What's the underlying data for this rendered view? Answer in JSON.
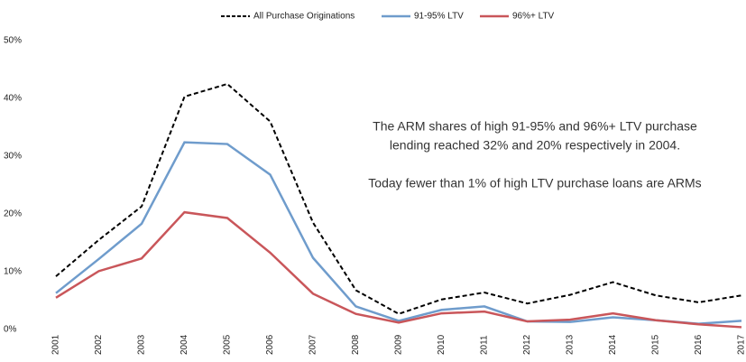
{
  "chart_data": {
    "type": "line",
    "categories": [
      "2001",
      "2002",
      "2003",
      "2004",
      "2005",
      "2006",
      "2007",
      "2008",
      "2009",
      "2010",
      "2011",
      "2012",
      "2013",
      "2014",
      "2015",
      "2016",
      "2017"
    ],
    "series": [
      {
        "name": "All Purchase Originations",
        "color": "#000000",
        "dashed": true,
        "values": [
          9.2,
          15.5,
          21.3,
          40.3,
          42.5,
          36.0,
          18.5,
          6.8,
          2.7,
          5.2,
          6.4,
          4.5,
          6.0,
          8.2,
          5.9,
          4.7,
          5.9
        ]
      },
      {
        "name": "91-95% LTV",
        "color": "#6f9ccc",
        "dashed": false,
        "values": [
          6.3,
          12.2,
          18.3,
          32.4,
          32.1,
          26.8,
          12.4,
          4.0,
          1.5,
          3.4,
          4.0,
          1.4,
          1.3,
          2.1,
          1.6,
          1.0,
          1.5
        ]
      },
      {
        "name": "96%+ LTV",
        "color": "#c9565a",
        "dashed": false,
        "values": [
          5.5,
          10.1,
          12.3,
          20.3,
          19.3,
          13.3,
          6.2,
          2.7,
          1.2,
          2.8,
          3.1,
          1.4,
          1.7,
          2.8,
          1.6,
          0.9,
          0.4
        ]
      }
    ],
    "ylim": [
      0,
      50
    ],
    "yticks": [
      {
        "value": 0,
        "label": "0%"
      },
      {
        "value": 10,
        "label": "10%"
      },
      {
        "value": 20,
        "label": "20%"
      },
      {
        "value": 30,
        "label": "30%"
      },
      {
        "value": 40,
        "label": "40%"
      },
      {
        "value": 50,
        "label": "50%"
      }
    ],
    "grid": false,
    "legend": "top",
    "annotations": [
      "The ARM shares of high 91-95% and 96%+ LTV purchase",
      "lending reached 32% and 20% respectively in 2004.",
      "Today fewer than 1% of high LTV purchase loans are ARMs"
    ]
  }
}
